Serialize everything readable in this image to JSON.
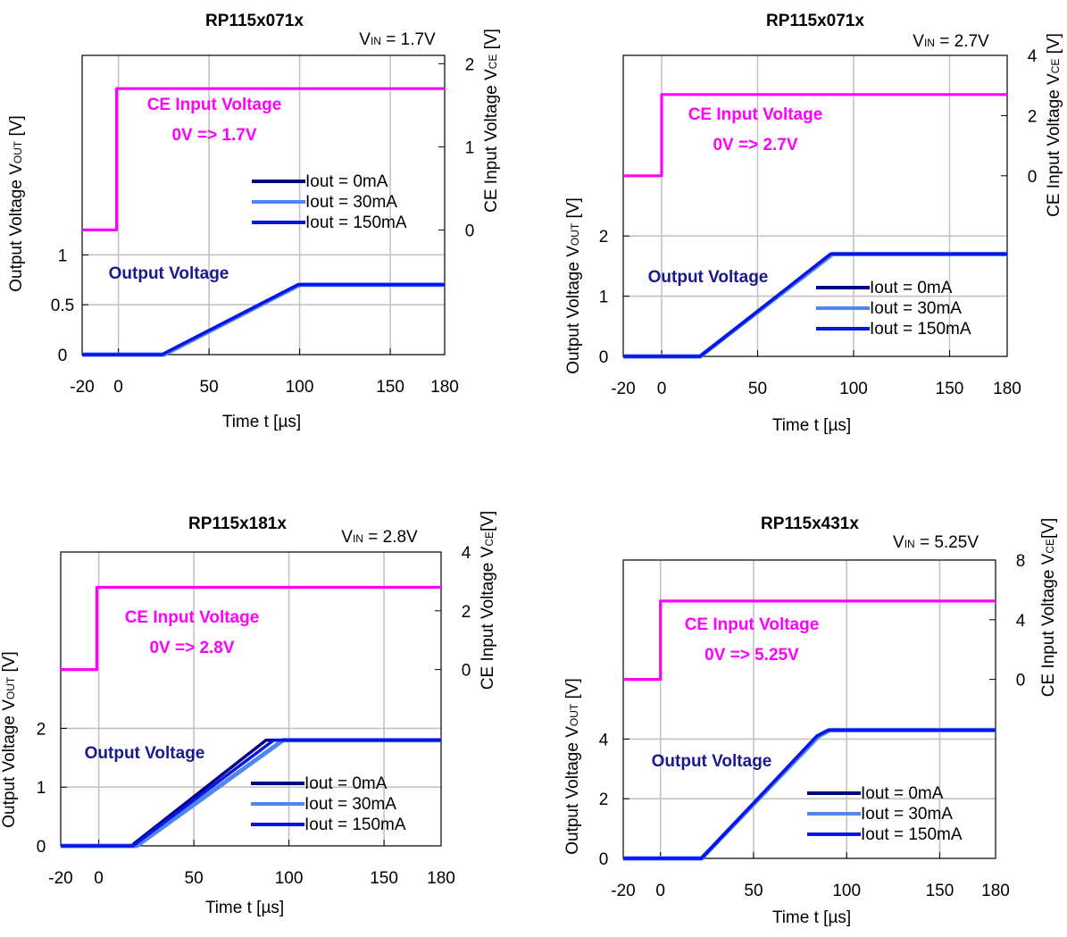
{
  "chart_data": [
    {
      "type": "line",
      "title": "RP115x071x",
      "vin": {
        "prefix": "V",
        "sub": "IN",
        "value": " = 1.7V"
      },
      "xlabel": "Time t  [µs]",
      "ylabel_left": {
        "prefix": "Output Voltage V",
        "sub": "OUT",
        "suffix": " [V]"
      },
      "ylabel_right": {
        "prefix": "CE Input Voltage V",
        "sub": "CE",
        "suffix": " [V]"
      },
      "xlim": [
        -20,
        180
      ],
      "x_ticks": [
        "-20",
        "0",
        "50",
        "100",
        "150",
        "180"
      ],
      "left_ylim": [
        0,
        3
      ],
      "left_ticks": [
        "0",
        "0.5",
        "1"
      ],
      "right_ylim": [
        -1.5,
        2.1
      ],
      "right_ticks": [
        "0",
        "1",
        "2"
      ],
      "grid": true,
      "annotations": {
        "ce_line1": "CE Input Voltage",
        "ce_line2": "0V => 1.7V",
        "out_label": "Output Voltage"
      },
      "legend_position": "center-right",
      "series": [
        {
          "name": "Iout = 0mA",
          "color": "#000080",
          "axis": "left",
          "x": [
            -20,
            24,
            99,
            180
          ],
          "y": [
            0,
            0,
            0.7,
            0.7
          ]
        },
        {
          "name": "Iout = 30mA",
          "color": "#4f86f0",
          "axis": "left",
          "x": [
            -20,
            25,
            100,
            180
          ],
          "y": [
            0,
            0,
            0.7,
            0.7
          ]
        },
        {
          "name": "Iout = 150mA",
          "color": "#0a14e8",
          "axis": "left",
          "x": [
            -20,
            24,
            99,
            180
          ],
          "y": [
            0,
            0,
            0.7,
            0.7
          ]
        },
        {
          "name": "CE",
          "color": "#ff00ff",
          "axis": "right",
          "x": [
            -20,
            -1,
            -1,
            180
          ],
          "y": [
            0,
            0,
            1.7,
            1.7
          ]
        }
      ]
    },
    {
      "type": "line",
      "title": "RP115x071x",
      "vin": {
        "prefix": "V",
        "sub": "IN",
        "value": " = 2.7V"
      },
      "xlabel": "Time t  [µs]",
      "ylabel_left": {
        "prefix": "Output Voltage V",
        "sub": "OUT",
        "suffix": " [V]"
      },
      "ylabel_right": {
        "prefix": "CE Input Voltage V",
        "sub": "CE",
        "suffix": " [V]"
      },
      "xlim": [
        -20,
        180
      ],
      "x_ticks": [
        "-20",
        "0",
        "50",
        "100",
        "150",
        "180"
      ],
      "left_ylim": [
        0,
        5
      ],
      "left_ticks": [
        "0",
        "1",
        "2"
      ],
      "right_ylim": [
        -6,
        4
      ],
      "right_ticks": [
        "0",
        "2",
        "4"
      ],
      "grid": true,
      "annotations": {
        "ce_line1": "CE Input Voltage",
        "ce_line2": "0V => 2.7V",
        "out_label": "Output Voltage"
      },
      "legend_position": "lower-right",
      "series": [
        {
          "name": "Iout = 0mA",
          "color": "#000080",
          "axis": "left",
          "x": [
            -20,
            20,
            88,
            180
          ],
          "y": [
            0,
            0,
            1.7,
            1.7
          ]
        },
        {
          "name": "Iout = 30mA",
          "color": "#4f86f0",
          "axis": "left",
          "x": [
            -20,
            20,
            89,
            180
          ],
          "y": [
            0,
            0,
            1.7,
            1.7
          ]
        },
        {
          "name": "Iout = 150mA",
          "color": "#0a14e8",
          "axis": "left",
          "x": [
            -20,
            20,
            88,
            180
          ],
          "y": [
            0,
            0,
            1.7,
            1.7
          ]
        },
        {
          "name": "CE",
          "color": "#ff00ff",
          "axis": "right",
          "x": [
            -20,
            0,
            0,
            180
          ],
          "y": [
            0,
            0,
            2.7,
            2.7
          ]
        }
      ]
    },
    {
      "type": "line",
      "title": "RP115x181x",
      "vin": {
        "prefix": "V",
        "sub": "IN",
        "value": " = 2.8V"
      },
      "xlabel": "Time t  [µs]",
      "ylabel_left": {
        "prefix": "Output Voltage V",
        "sub": "OUT",
        "suffix": " [V]"
      },
      "ylabel_right": {
        "prefix": "CE Input Voltage V",
        "sub": "CE",
        "suffix": "[V]"
      },
      "xlim": [
        -20,
        180
      ],
      "x_ticks": [
        "-20",
        "0",
        "50",
        "100",
        "150",
        "180"
      ],
      "left_ylim": [
        0,
        5
      ],
      "left_ticks": [
        "0",
        "1",
        "2"
      ],
      "right_ylim": [
        -6,
        4
      ],
      "right_ticks": [
        "0",
        "2",
        "4"
      ],
      "grid": true,
      "annotations": {
        "ce_line1": "CE Input Voltage",
        "ce_line2": "0V => 2.8V",
        "out_label": "Output Voltage"
      },
      "legend_position": "lower-right",
      "series": [
        {
          "name": "Iout = 0mA",
          "color": "#000080",
          "axis": "left",
          "x": [
            -20,
            17,
            88,
            180
          ],
          "y": [
            0,
            0,
            1.8,
            1.8
          ]
        },
        {
          "name": "Iout = 30mA",
          "color": "#4f86f0",
          "axis": "left",
          "x": [
            -20,
            20,
            97,
            180
          ],
          "y": [
            0,
            0,
            1.8,
            1.8
          ]
        },
        {
          "name": "Iout = 150mA",
          "color": "#0a14e8",
          "axis": "left",
          "x": [
            -20,
            18,
            92,
            180
          ],
          "y": [
            0,
            0,
            1.8,
            1.8
          ]
        },
        {
          "name": "CE",
          "color": "#ff00ff",
          "axis": "right",
          "x": [
            -20,
            -1,
            -1,
            180
          ],
          "y": [
            0,
            0,
            2.8,
            2.8
          ]
        }
      ]
    },
    {
      "type": "line",
      "title": "RP115x431x",
      "vin": {
        "prefix": "V",
        "sub": "IN",
        "value": " = 5.25V"
      },
      "xlabel": "Time t  [µs]",
      "ylabel_left": {
        "prefix": "Output Voltage V",
        "sub": "OUT",
        "suffix": " [V]"
      },
      "ylabel_right": {
        "prefix": "CE Input Voltage V",
        "sub": "CE",
        "suffix": "[V]"
      },
      "xlim": [
        -20,
        180
      ],
      "x_ticks": [
        "-20",
        "0",
        "50",
        "100",
        "150",
        "180"
      ],
      "left_ylim": [
        0,
        10
      ],
      "left_ticks": [
        "0",
        "2",
        "4"
      ],
      "right_ylim": [
        -12,
        8
      ],
      "right_ticks": [
        "0",
        "4",
        "8"
      ],
      "grid": true,
      "annotations": {
        "ce_line1": "CE Input Voltage",
        "ce_line2": "0V => 5.25V",
        "out_label": "Output Voltage"
      },
      "legend_position": "lower-right",
      "series": [
        {
          "name": "Iout = 0mA",
          "color": "#000080",
          "axis": "left",
          "x": [
            -20,
            22,
            84,
            90,
            180
          ],
          "y": [
            0,
            0,
            4.1,
            4.3,
            4.3
          ]
        },
        {
          "name": "Iout = 30mA",
          "color": "#4f86f0",
          "axis": "left",
          "x": [
            -20,
            22,
            85,
            91,
            180
          ],
          "y": [
            0,
            0,
            4.1,
            4.3,
            4.3
          ]
        },
        {
          "name": "Iout = 150mA",
          "color": "#0a14e8",
          "axis": "left",
          "x": [
            -20,
            22,
            84,
            90,
            180
          ],
          "y": [
            0,
            0,
            4.1,
            4.3,
            4.3
          ]
        },
        {
          "name": "CE",
          "color": "#ff00ff",
          "axis": "right",
          "x": [
            -20,
            0,
            0,
            180
          ],
          "y": [
            0,
            0,
            5.25,
            5.25
          ]
        }
      ]
    }
  ]
}
